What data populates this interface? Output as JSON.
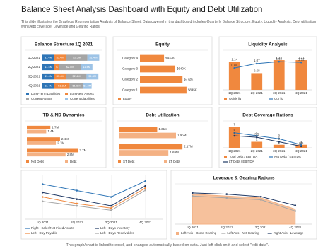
{
  "title": "Balance Sheet Analysis Dashboard with Equity and Debt Utilization",
  "subtitle": "This slide illustrates the Graphical Representation Analysis of Balance Sheet. Data covered in this dashboard includes-Quarterly Balance Structure, Equity, Liquidity Analysis, Debt utilization with Debt coverage, Leverage and Gearing Ratios.",
  "footer": "This graph/chart is linked to excel, and changes automatically based on data. Just left click on it and select \"edit data\".",
  "chart_data": [
    {
      "type": "stacked-hbar",
      "title": "Balance Structure 1Q 2021",
      "categories": [
        "1Q 2021",
        "2Q 2021",
        "3Q 2021",
        "4Q 2021"
      ],
      "xlim": [
        0,
        7
      ],
      "series": [
        {
          "name": "Long-Term Liabilities",
          "color": "#2e75b6",
          "values": [
            1.4,
            1.4,
            1.4,
            1.4
          ],
          "value_labels": [
            "$1.4M",
            "$1.4M",
            "$1.4M",
            "$1.4M"
          ]
        },
        {
          "name": "Long-tear Assets",
          "color": "#f0883e",
          "values": [
            1.4,
            0.6,
            1.4,
            1.8
          ],
          "value_labels": [
            "$1.4M",
            "$",
            "$1.4M",
            "$1.8M"
          ]
        },
        {
          "name": "Current Assets",
          "color": "#a5a5a5",
          "values": [
            2.5,
            2.5,
            2.4,
            1.6
          ],
          "value_labels": [
            "$2.5M",
            "$2.5M",
            "$2.4M",
            "$1.6M"
          ]
        },
        {
          "name": "Current Liabilities",
          "color": "#9dc3e6",
          "values": [
            1.4,
            1.4,
            1.4,
            1.0
          ],
          "value_labels": [
            "$1.4M",
            "$1.4M",
            "$1.4M",
            "$1.0M"
          ]
        }
      ]
    },
    {
      "type": "hbar",
      "title": "Equity",
      "categories": [
        "Category 4",
        "Category 3",
        "Category 2",
        "Category 1"
      ],
      "xlim": [
        0,
        1000
      ],
      "series": [
        {
          "name": "Equity",
          "color": "#f0883e",
          "values": [
            437,
            640,
            772,
            845
          ],
          "value_labels": [
            "$437K",
            "$640K",
            "$772K",
            "$845K"
          ]
        }
      ]
    },
    {
      "type": "combo",
      "title": "Liquidity Analysis",
      "data_labels": true,
      "categories": [
        "1Q 2021",
        "2Q 2021",
        "3Q 2021",
        "4Q 2021"
      ],
      "ylim": [
        0,
        1.5
      ],
      "series": [
        {
          "name": "Quick liq",
          "kind": "bar",
          "color": "#f0883e",
          "values": [
            1.14,
            0.68,
            1.21,
            1.21
          ]
        },
        {
          "name": "Cur liq",
          "kind": "line",
          "color": "#2e75b6",
          "values": [
            0.89,
            1.07,
            1.15,
            1.12
          ]
        }
      ]
    },
    {
      "type": "hbar",
      "title": "TD & ND Dynamics",
      "categories": [
        null,
        null,
        null
      ],
      "xlim": [
        0,
        4.5
      ],
      "series": [
        {
          "name": "Net Debt",
          "color": "#f0883e",
          "values": [
            1.7,
            2.4,
            3.7
          ],
          "value_labels": [
            "1.7M",
            "2.4M",
            "3.7M"
          ]
        },
        {
          "name": "Debt",
          "color": "#f4b183",
          "values": [
            1.4,
            2.1,
            2.8
          ],
          "value_labels": [
            "1.4M",
            "2.1M",
            "2.8M"
          ]
        }
      ]
    },
    {
      "type": "hbar",
      "title": "Debt Utilization",
      "categories": [
        null,
        null
      ],
      "xlim": [
        0,
        2.6
      ],
      "series": [
        {
          "name": "ST Debt",
          "color": "#f0883e",
          "values": [
            1.31,
            2.17
          ],
          "value_labels": [
            "1.31M",
            "2.17M"
          ]
        },
        {
          "name": "LT Debt",
          "color": "#f4b183",
          "values": [
            1.95,
            1.69
          ],
          "value_labels": [
            "1.95M",
            "1.69M"
          ]
        }
      ]
    },
    {
      "type": "combo",
      "title": "Debt Coverage Rations",
      "data_labels": true,
      "categories": [
        "1Q 2021",
        "2Q 2021",
        "3Q 2021",
        "4Q 2021"
      ],
      "ylim": [
        0,
        8
      ],
      "series": [
        {
          "name": "Total Debt / EBITDA",
          "kind": "bar",
          "color": "#f0883e",
          "values": [
            7,
            2,
            1,
            1
          ]
        },
        {
          "name": "Net Debt / EBITDA",
          "kind": "line",
          "color": "#2e75b6",
          "values": [
            5,
            4,
            3,
            1
          ]
        },
        {
          "name": "LT Debt / EBITDA",
          "kind": "line",
          "color": "#1f3864",
          "values": [
            4,
            3.5,
            2,
            0.5
          ]
        }
      ]
    },
    {
      "type": "line",
      "title": null,
      "grid": true,
      "categories": [
        "1Q 2021",
        "2Q 2021",
        "3Q 2021",
        "4Q 2021"
      ],
      "ylim": [
        0,
        100
      ],
      "y2lim": [
        0,
        7
      ],
      "series": [
        {
          "name": "Right - Sales/Net Fixed Assets",
          "axis": "y2",
          "color": "#2e75b6",
          "values": [
            5.5,
            4.5,
            3.5,
            6
          ]
        },
        {
          "name": "Left - Days Inventory",
          "color": "#1f3864",
          "values": [
            60,
            45,
            30,
            75
          ]
        },
        {
          "name": "Left - Day Payable",
          "color": "#f0883e",
          "values": [
            50,
            35,
            25,
            70
          ]
        },
        {
          "name": "Left - Days Receivables",
          "color": "#a5a5a5",
          "values": [
            40,
            30,
            20,
            65
          ]
        }
      ]
    },
    {
      "type": "area",
      "title": "Leverage & Gearing Rations",
      "categories": [
        "1Q 2021",
        "2Q 2021",
        "3Q 2021",
        "4Q 2021"
      ],
      "ylim": [
        0,
        100
      ],
      "y2lim": [
        0,
        3
      ],
      "series": [
        {
          "name": "Left Axis - Gross Gearing",
          "kind": "area",
          "color": "#f4b183",
          "values": [
            80,
            75,
            70,
            40
          ]
        },
        {
          "name": "Left Axis - Net Gearing",
          "kind": "line",
          "color": "#a5a5a5",
          "values": [
            75,
            70,
            65,
            35
          ]
        },
        {
          "name": "Right Axis - Leverage",
          "kind": "line",
          "axis": "y2",
          "color": "#1f3864",
          "values": [
            2.5,
            2.4,
            2.2,
            1.5
          ]
        }
      ]
    }
  ]
}
